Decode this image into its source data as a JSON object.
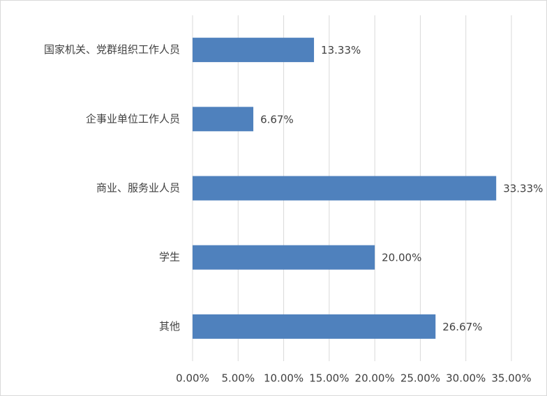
{
  "chart_data": {
    "type": "bar",
    "orientation": "horizontal",
    "categories": [
      "国家机关、党群组织工作人员",
      "企事业单位工作人员",
      "商业、服务业人员",
      "学生",
      "其他"
    ],
    "values": [
      13.33,
      6.67,
      33.33,
      20,
      26.67
    ],
    "value_labels": [
      "13.33%",
      "6.67%",
      "33.33%",
      "20.00%",
      "26.67%"
    ],
    "color": "#4f81bd",
    "xlim": [
      0,
      35
    ],
    "xticks": [
      {
        "value": 0,
        "label": "0.00%"
      },
      {
        "value": 5,
        "label": "5.00%"
      },
      {
        "value": 10,
        "label": "10.00%"
      },
      {
        "value": 15,
        "label": "15.00%"
      },
      {
        "value": 20,
        "label": "20.00%"
      },
      {
        "value": 25,
        "label": "25.00%"
      },
      {
        "value": 30,
        "label": "30.00%"
      },
      {
        "value": 35,
        "label": "35.00%"
      }
    ],
    "grid": true
  }
}
